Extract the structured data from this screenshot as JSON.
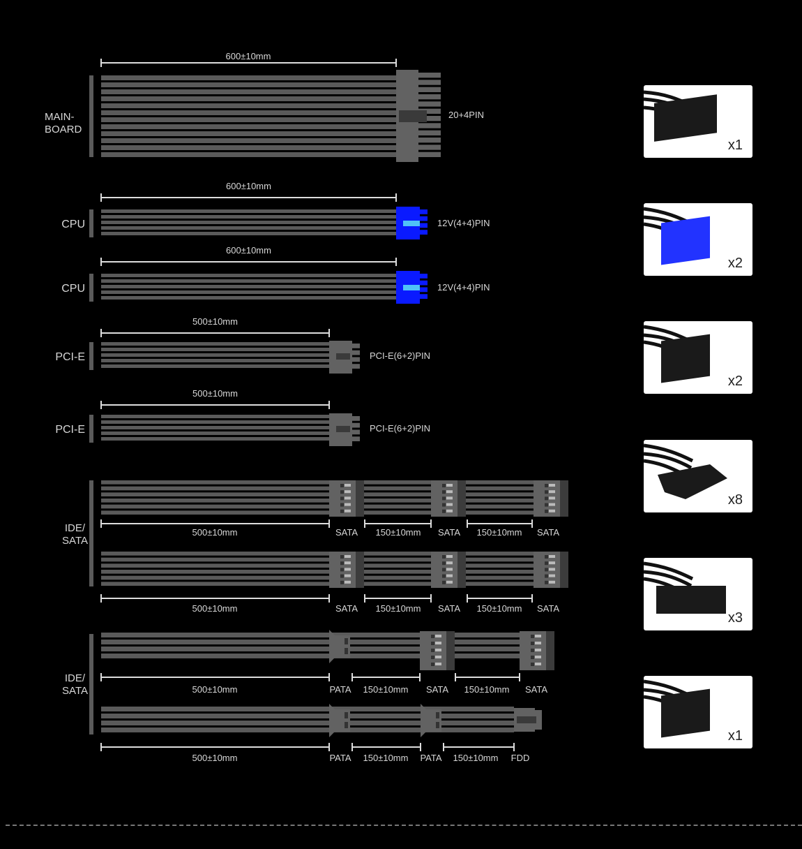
{
  "colors": {
    "background": "#000000",
    "wire": "#5a5a5a",
    "connector": "#626262",
    "cpu_connector": "#0a1aff",
    "cpu_latch": "#4fc3f7",
    "text": "#d8d8d8"
  },
  "cables": [
    {
      "group": [
        "MAIN-",
        "BOARD"
      ],
      "length": "600±10mm",
      "connector": "20+4PIN"
    },
    {
      "group": [
        "CPU"
      ],
      "length": "600±10mm",
      "connector": "12V(4+4)PIN"
    },
    {
      "group": [
        "CPU"
      ],
      "length": "600±10mm",
      "connector": "12V(4+4)PIN"
    },
    {
      "group": [
        "PCI-E"
      ],
      "length": "500±10mm",
      "connector": "PCI-E(6+2)PIN"
    },
    {
      "group": [
        "PCI-E"
      ],
      "length": "500±10mm",
      "connector": "PCI-E(6+2)PIN"
    }
  ],
  "peripheral_groups": [
    {
      "group": [
        "IDE/",
        "SATA"
      ],
      "rows": [
        [
          "500±10mm",
          "SATA",
          "150±10mm",
          "SATA",
          "150±10mm",
          "SATA"
        ],
        [
          "500±10mm",
          "SATA",
          "150±10mm",
          "SATA",
          "150±10mm",
          "SATA"
        ]
      ]
    },
    {
      "group": [
        "IDE/",
        "SATA"
      ],
      "rows": [
        [
          "500±10mm",
          "PATA",
          "150±10mm",
          "SATA",
          "150±10mm",
          "SATA"
        ],
        [
          "500±10mm",
          "PATA",
          "150±10mm",
          "PATA",
          "150±10mm",
          "FDD"
        ]
      ]
    }
  ],
  "connector_photos": [
    {
      "icon": "atx-24pin-connector",
      "count": "x1"
    },
    {
      "icon": "eps-8pin-connector",
      "count": "x2"
    },
    {
      "icon": "pcie-8pin-connector",
      "count": "x2"
    },
    {
      "icon": "sata-connector",
      "count": "x8"
    },
    {
      "icon": "molex-connector",
      "count": "x3"
    },
    {
      "icon": "pcie-6pin-connector",
      "count": "x1"
    }
  ]
}
